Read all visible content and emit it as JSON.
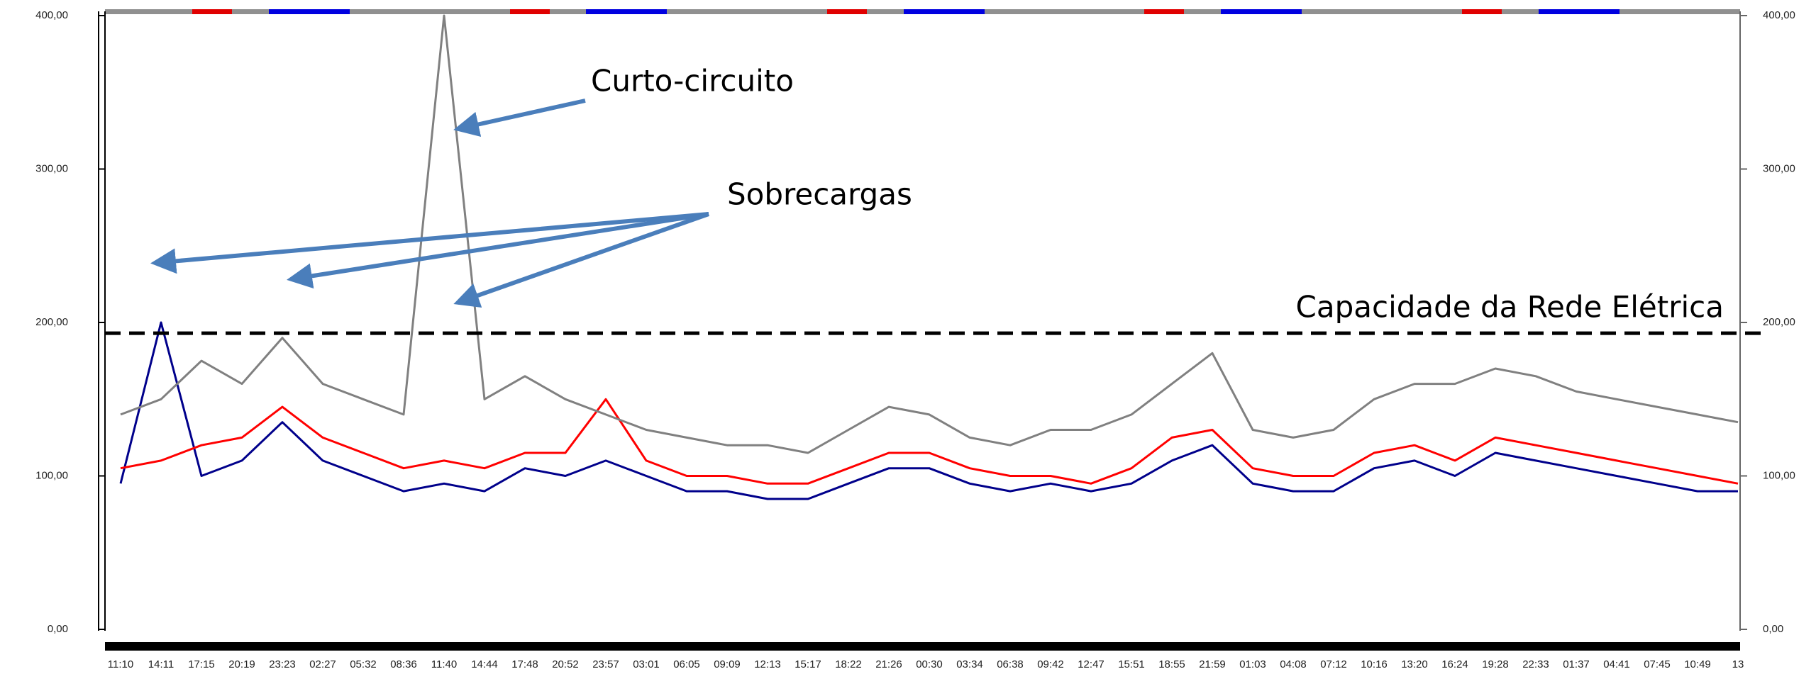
{
  "chart_data": {
    "type": "line",
    "categories": [
      "11:10",
      "14:11",
      "17:15",
      "20:19",
      "23:23",
      "02:27",
      "05:32",
      "08:36",
      "11:40",
      "14:44",
      "17:48",
      "20:52",
      "23:57",
      "03:01",
      "06:05",
      "09:09",
      "12:13",
      "15:17",
      "18:22",
      "21:26",
      "00:30",
      "03:34",
      "06:38",
      "09:42",
      "12:47",
      "15:51",
      "18:55",
      "21:59",
      "01:03",
      "04:08",
      "07:12",
      "10:16",
      "13:20",
      "16:24",
      "19:28",
      "22:33",
      "01:37",
      "04:41",
      "07:45",
      "10:49",
      "13"
    ],
    "series": [
      {
        "color": "#00008b",
        "values": [
          95,
          200,
          100,
          110,
          135,
          110,
          100,
          90,
          95,
          90,
          105,
          100,
          110,
          100,
          90,
          90,
          85,
          85,
          95,
          105,
          105,
          95,
          90,
          95,
          90,
          95,
          110,
          120,
          95,
          90,
          90,
          105,
          110,
          100,
          115,
          110,
          105,
          100,
          95,
          90,
          90
        ]
      },
      {
        "color": "#ff0000",
        "values": [
          105,
          110,
          120,
          125,
          145,
          125,
          115,
          105,
          110,
          105,
          115,
          115,
          150,
          110,
          100,
          100,
          95,
          95,
          105,
          115,
          115,
          105,
          100,
          100,
          95,
          105,
          125,
          130,
          105,
          100,
          100,
          115,
          120,
          110,
          125,
          120,
          115,
          110,
          105,
          100,
          95
        ]
      },
      {
        "color": "#808080",
        "values": [
          140,
          150,
          175,
          160,
          190,
          160,
          150,
          140,
          400,
          150,
          165,
          150,
          140,
          130,
          125,
          120,
          120,
          115,
          130,
          145,
          140,
          125,
          120,
          130,
          130,
          140,
          160,
          180,
          130,
          125,
          130,
          150,
          160,
          160,
          170,
          165,
          155,
          150,
          145,
          140,
          135
        ]
      }
    ],
    "ylim": [
      0,
      400
    ],
    "yticks": [
      {
        "value": 0,
        "label": "0,00"
      },
      {
        "value": 100,
        "label": "100,00"
      },
      {
        "value": 200,
        "label": "200,00"
      },
      {
        "value": 300,
        "label": "300,00"
      },
      {
        "value": 400,
        "label": "400,00"
      }
    ],
    "y2lim": [
      0,
      400
    ],
    "y2ticks": [
      {
        "value": 0,
        "label": "0,00"
      },
      {
        "value": 100,
        "label": "100,00"
      },
      {
        "value": 200,
        "label": "200,00"
      },
      {
        "value": 300,
        "label": "300,00"
      },
      {
        "value": 400,
        "label": "400,00"
      }
    ],
    "reference_line": {
      "label": "Capacidade da Rede Elétrica",
      "value": 193,
      "color": "#000000"
    },
    "annotations": [
      "Curto-circuito",
      "Sobrecargas"
    ]
  }
}
